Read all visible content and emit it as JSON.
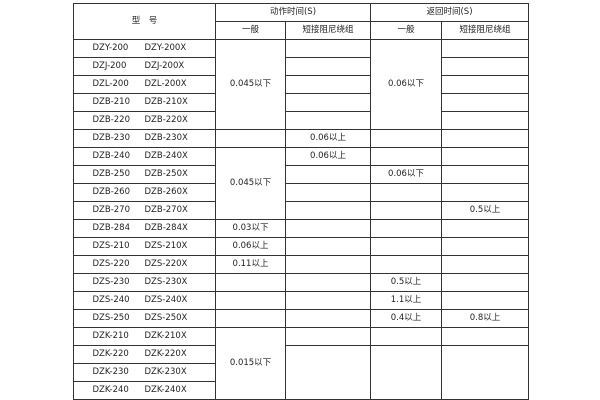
{
  "header": {
    "model": "型　号",
    "action_time": "动作时间(S)",
    "return_time": "返回时间(S)",
    "general": "一般",
    "short_damper": "短接阻尼绕组"
  },
  "rows": [
    {
      "model": [
        "DZY-200",
        "DZY-200X"
      ],
      "cells": [
        {
          "col": "action_general",
          "text": "0.045以下",
          "rowspan": 5
        },
        {
          "col": "action_short",
          "text": ""
        },
        {
          "col": "return_general",
          "text": "0.06以下",
          "rowspan": 5
        },
        {
          "col": "return_short",
          "text": ""
        }
      ]
    },
    {
      "model": [
        "DZJ-200",
        "DZJ-200X"
      ],
      "cells": [
        {
          "col": "action_short",
          "text": ""
        },
        {
          "col": "return_short",
          "text": ""
        }
      ]
    },
    {
      "model": [
        "DZL-200",
        "DZL-200X"
      ],
      "cells": [
        {
          "col": "action_short",
          "text": ""
        },
        {
          "col": "return_short",
          "text": ""
        }
      ]
    },
    {
      "model": [
        "DZB-210",
        "DZB-210X"
      ],
      "cells": [
        {
          "col": "action_short",
          "text": ""
        },
        {
          "col": "return_short",
          "text": ""
        }
      ]
    },
    {
      "model": [
        "DZB-220",
        "DZB-220X"
      ],
      "cells": [
        {
          "col": "action_short",
          "text": ""
        },
        {
          "col": "return_short",
          "text": ""
        }
      ]
    },
    {
      "model": [
        "DZB-230",
        "DZB-230X"
      ],
      "cells": [
        {
          "col": "action_general",
          "text": ""
        },
        {
          "col": "action_short",
          "text": "0.06以上"
        },
        {
          "col": "return_general",
          "text": ""
        },
        {
          "col": "return_short",
          "text": ""
        }
      ]
    },
    {
      "model": [
        "DZB-240",
        "DZB-240X"
      ],
      "cells": [
        {
          "col": "action_general",
          "text": "0.045以下",
          "rowspan": 4
        },
        {
          "col": "action_short",
          "text": "0.06以上"
        },
        {
          "col": "return_general",
          "text": ""
        },
        {
          "col": "return_short",
          "text": ""
        }
      ]
    },
    {
      "model": [
        "DZB-250",
        "DZB-250X"
      ],
      "cells": [
        {
          "col": "action_short",
          "text": ""
        },
        {
          "col": "return_general",
          "text": "0.06以下"
        },
        {
          "col": "return_short",
          "text": ""
        }
      ]
    },
    {
      "model": [
        "DZB-260",
        "DZB-260X"
      ],
      "cells": [
        {
          "col": "action_short",
          "text": ""
        },
        {
          "col": "return_general",
          "text": ""
        },
        {
          "col": "return_short",
          "text": ""
        }
      ]
    },
    {
      "model": [
        "DZB-270",
        "DZB-270X"
      ],
      "cells": [
        {
          "col": "action_short",
          "text": ""
        },
        {
          "col": "return_general",
          "text": ""
        },
        {
          "col": "return_short",
          "text": "0.5以上"
        }
      ]
    },
    {
      "model": [
        "DZB-284",
        "DZB-284X"
      ],
      "cells": [
        {
          "col": "action_general",
          "text": "0.03以下"
        },
        {
          "col": "action_short",
          "text": ""
        },
        {
          "col": "return_general",
          "text": ""
        },
        {
          "col": "return_short",
          "text": ""
        }
      ]
    },
    {
      "model": [
        "DZS-210",
        "DZS-210X"
      ],
      "cells": [
        {
          "col": "action_general",
          "text": "0.06以上"
        },
        {
          "col": "action_short",
          "text": ""
        },
        {
          "col": "return_general",
          "text": ""
        },
        {
          "col": "return_short",
          "text": ""
        }
      ]
    },
    {
      "model": [
        "DZS-220",
        "DZS-220X"
      ],
      "cells": [
        {
          "col": "action_general",
          "text": "0.11以上"
        },
        {
          "col": "action_short",
          "text": ""
        },
        {
          "col": "return_general",
          "text": ""
        },
        {
          "col": "return_short",
          "text": ""
        }
      ]
    },
    {
      "model": [
        "DZS-230",
        "DZS-230X"
      ],
      "cells": [
        {
          "col": "action_general",
          "text": ""
        },
        {
          "col": "action_short",
          "text": ""
        },
        {
          "col": "return_general",
          "text": "0.5以上"
        },
        {
          "col": "return_short",
          "text": ""
        }
      ]
    },
    {
      "model": [
        "DZS-240",
        "DZS-240X"
      ],
      "cells": [
        {
          "col": "action_general",
          "text": ""
        },
        {
          "col": "action_short",
          "text": ""
        },
        {
          "col": "return_general",
          "text": "1.1以上"
        },
        {
          "col": "return_short",
          "text": ""
        }
      ]
    },
    {
      "model": [
        "DZS-250",
        "DZS-250X"
      ],
      "cells": [
        {
          "col": "action_general",
          "text": ""
        },
        {
          "col": "action_short",
          "text": ""
        },
        {
          "col": "return_general",
          "text": "0.4以上"
        },
        {
          "col": "return_short",
          "text": "0.8以上"
        }
      ]
    },
    {
      "model": [
        "DZK-210",
        "DZK-210X"
      ],
      "cells": [
        {
          "col": "action_general",
          "text": "0.015以下",
          "rowspan": 4
        },
        {
          "col": "action_short",
          "text": ""
        },
        {
          "col": "return_general",
          "text": ""
        },
        {
          "col": "return_short",
          "text": ""
        }
      ]
    },
    {
      "model": [
        "DZK-220",
        "DZK-220X"
      ],
      "cells": [
        {
          "col": "action_short",
          "text": "",
          "rowspan": 3
        },
        {
          "col": "return_general",
          "text": "",
          "rowspan": 3
        },
        {
          "col": "return_short",
          "text": "",
          "rowspan": 3
        }
      ]
    },
    {
      "model": [
        "DZK-230",
        "DZK-230X"
      ],
      "cells": []
    },
    {
      "model": [
        "DZK-240",
        "DZK-240X"
      ],
      "cells": []
    }
  ]
}
